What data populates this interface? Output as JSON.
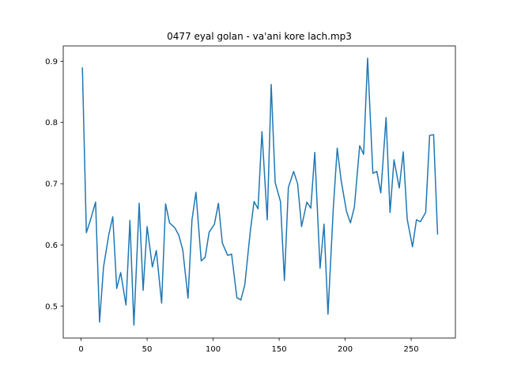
{
  "chart_data": {
    "type": "line",
    "title": "0477 eyal golan - va'ani kore lach.mp3",
    "xlabel": "",
    "ylabel": "",
    "xlim": [
      -13.5,
      283.5
    ],
    "ylim": [
      0.448,
      0.925
    ],
    "xticks": [
      0,
      50,
      100,
      150,
      200,
      250
    ],
    "yticks": [
      0.5,
      0.6,
      0.7,
      0.8,
      0.9
    ],
    "xtick_labels": [
      "0",
      "50",
      "100",
      "150",
      "200",
      "250"
    ],
    "ytick_labels": [
      "0.5",
      "0.6",
      "0.7",
      "0.8",
      "0.9"
    ],
    "grid": false,
    "line_color": "#1f77b4",
    "series": [
      {
        "x": [
          1,
          4,
          7,
          11,
          14,
          17,
          21,
          24,
          27,
          30,
          34,
          37,
          40,
          44,
          47,
          50,
          54,
          57,
          61,
          64,
          67,
          71,
          74,
          77,
          81,
          84,
          87,
          91,
          94,
          97,
          101,
          104,
          107,
          111,
          114,
          118,
          121,
          124,
          128,
          131,
          134,
          137,
          141,
          144,
          147,
          151,
          154,
          157,
          161,
          164,
          167,
          171,
          174,
          177,
          181,
          184,
          187,
          191,
          194,
          197,
          201,
          204,
          207,
          211,
          214,
          217,
          221,
          224,
          227,
          231,
          234,
          237,
          241,
          244,
          247,
          251,
          254,
          257,
          261,
          264,
          267,
          270
        ],
        "y": [
          0.889,
          0.62,
          0.64,
          0.67,
          0.474,
          0.564,
          0.617,
          0.646,
          0.529,
          0.555,
          0.502,
          0.64,
          0.469,
          0.668,
          0.526,
          0.63,
          0.564,
          0.591,
          0.505,
          0.667,
          0.636,
          0.628,
          0.616,
          0.592,
          0.513,
          0.641,
          0.686,
          0.574,
          0.58,
          0.621,
          0.634,
          0.668,
          0.603,
          0.583,
          0.585,
          0.514,
          0.51,
          0.535,
          0.619,
          0.671,
          0.659,
          0.785,
          0.641,
          0.862,
          0.702,
          0.671,
          0.542,
          0.694,
          0.72,
          0.7,
          0.63,
          0.67,
          0.66,
          0.751,
          0.562,
          0.634,
          0.487,
          0.659,
          0.758,
          0.705,
          0.655,
          0.636,
          0.662,
          0.762,
          0.748,
          0.905,
          0.717,
          0.72,
          0.685,
          0.808,
          0.653,
          0.739,
          0.693,
          0.752,
          0.642,
          0.597,
          0.641,
          0.638,
          0.653,
          0.779,
          0.78,
          0.618
        ]
      }
    ]
  }
}
